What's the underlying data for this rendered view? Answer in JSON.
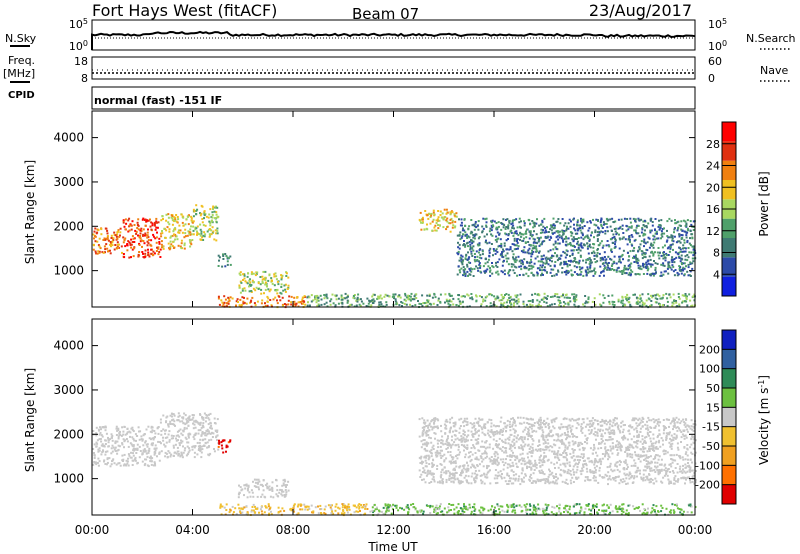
{
  "header": {
    "station": "Fort Hays West (fitACF)",
    "beam": "Beam 07",
    "date": "23/Aug/2017"
  },
  "status_panels": {
    "nsky": {
      "label": "N.Sky",
      "tick_top": "10^5",
      "tick_bottom": "10^0"
    },
    "nsearch": {
      "label": "N.Search",
      "tick_top": "10^5",
      "tick_bottom": "10^0"
    },
    "freq": {
      "label_line1": "Freq.",
      "label_line2": "[MHz]",
      "tick_top": "18",
      "tick_bottom": "8"
    },
    "nave": {
      "label": "Nave",
      "tick_top": "60",
      "tick_bottom": "0"
    },
    "cpid": {
      "label": "CPID",
      "program": "normal (fast) -151 IF"
    }
  },
  "colors": {
    "power": [
      "#1020e0",
      "#2c4aa8",
      "#3f7a73",
      "#4fa06a",
      "#a8d860",
      "#f0c020",
      "#f08010",
      "#e03010",
      "#ff0000"
    ],
    "velocity": [
      "#1020c0",
      "#3060a0",
      "#2e8b57",
      "#6cc040",
      "#c8c8c8",
      "#f0c030",
      "#f0a020",
      "#ff7000",
      "#e00000"
    ]
  },
  "chart_data": [
    {
      "type": "heatmap",
      "title": "Power",
      "ylabel": "Slant Range [km]",
      "xlabel": "Time UT",
      "x_ticks": [
        "00:00",
        "04:00",
        "08:00",
        "12:00",
        "16:00",
        "20:00",
        "00:00"
      ],
      "xlim_hours": [
        0,
        24
      ],
      "y_ticks": [
        1000,
        2000,
        3000,
        4000
      ],
      "ylim": [
        180,
        4600
      ],
      "colorbar": {
        "label": "Power [dB]",
        "ticks": [
          4,
          8,
          12,
          16,
          20,
          24,
          28
        ],
        "range": [
          0,
          32
        ]
      },
      "echo_regions": [
        {
          "t": [
            0.0,
            1.2
          ],
          "r": [
            1400,
            2000
          ],
          "level": 6
        },
        {
          "t": [
            1.2,
            2.7
          ],
          "r": [
            1300,
            2200
          ],
          "level": 7
        },
        {
          "t": [
            2.7,
            4.0
          ],
          "r": [
            1500,
            2300
          ],
          "level": 5
        },
        {
          "t": [
            4.0,
            5.0
          ],
          "r": [
            1700,
            2500
          ],
          "level": 4
        },
        {
          "t": [
            5.0,
            5.5
          ],
          "r": [
            1100,
            1400
          ],
          "level": 2
        },
        {
          "t": [
            5.8,
            7.8
          ],
          "r": [
            500,
            1000
          ],
          "level": 4
        },
        {
          "t": [
            5.0,
            8.5
          ],
          "r": [
            200,
            450
          ],
          "level": 6
        },
        {
          "t": [
            8.5,
            24.0
          ],
          "r": [
            200,
            500
          ],
          "level": 3
        },
        {
          "t": [
            13.0,
            14.5
          ],
          "r": [
            1900,
            2400
          ],
          "level": 5
        },
        {
          "t": [
            14.5,
            24.0
          ],
          "r": [
            900,
            2200
          ],
          "level": 2
        }
      ]
    },
    {
      "type": "heatmap",
      "title": "Velocity",
      "ylabel": "Slant Range [km]",
      "xlabel": "Time UT",
      "x_ticks": [
        "00:00",
        "04:00",
        "08:00",
        "12:00",
        "16:00",
        "20:00",
        "00:00"
      ],
      "xlim_hours": [
        0,
        24
      ],
      "y_ticks": [
        1000,
        2000,
        3000,
        4000
      ],
      "ylim": [
        180,
        4600
      ],
      "colorbar": {
        "label": "Velocity [m s^-1]",
        "ticks": [
          "200",
          "100",
          "50",
          "15",
          "-15",
          "-50",
          "-100",
          "-200"
        ]
      },
      "echo_regions": [
        {
          "t": [
            0.0,
            2.7
          ],
          "r": [
            1300,
            2200
          ],
          "class": "ground scatter"
        },
        {
          "t": [
            2.7,
            5.0
          ],
          "r": [
            1500,
            2500
          ],
          "class": "ground scatter"
        },
        {
          "t": [
            5.0,
            5.5
          ],
          "r": [
            1600,
            1900
          ],
          "class": "-200 to -100"
        },
        {
          "t": [
            5.8,
            7.8
          ],
          "r": [
            600,
            1000
          ],
          "class": "ground scatter"
        },
        {
          "t": [
            5.0,
            11.0
          ],
          "r": [
            200,
            450
          ],
          "class": "-50 to -15"
        },
        {
          "t": [
            11.0,
            24.0
          ],
          "r": [
            200,
            450
          ],
          "class": "15 to 50"
        },
        {
          "t": [
            13.0,
            24.0
          ],
          "r": [
            900,
            2400
          ],
          "class": "ground scatter"
        }
      ]
    }
  ]
}
